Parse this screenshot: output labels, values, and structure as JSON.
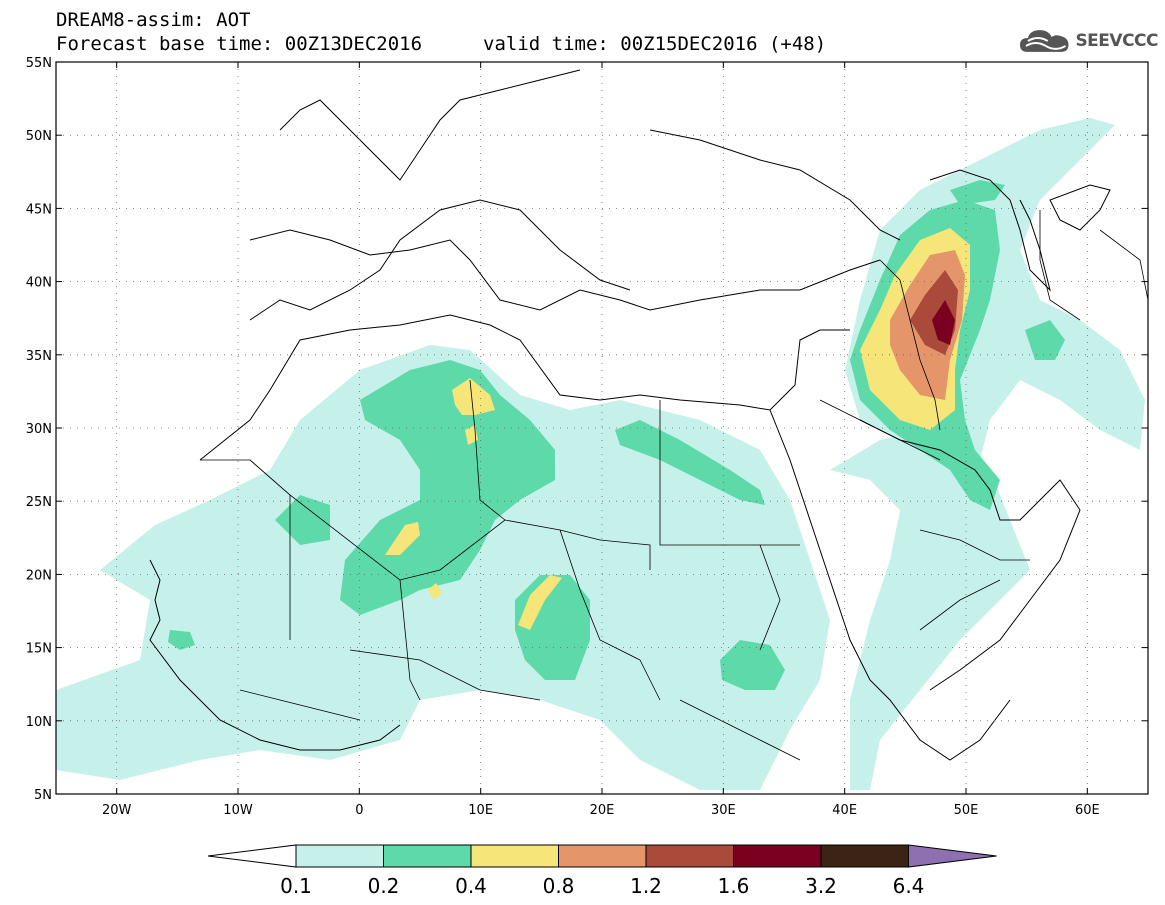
{
  "header": {
    "title_line_1": "DREAM8-assim: AOT",
    "title_line_2": "Forecast base time: 00Z13DEC2016",
    "valid_time": "valid time: 00Z15DEC2016 (+48)"
  },
  "logo": {
    "text": "SEEVCCC",
    "icon": "cloud-icon"
  },
  "map": {
    "latitude_labels": [
      "55N",
      "50N",
      "45N",
      "40N",
      "35N",
      "30N",
      "25N",
      "20N",
      "15N",
      "10N",
      "5N"
    ],
    "longitude_labels": [
      "20W",
      "10W",
      "0",
      "10E",
      "20E",
      "30E",
      "40E",
      "50E",
      "60E"
    ],
    "extent": {
      "lon": [
        -25,
        65
      ],
      "lat": [
        5,
        55
      ]
    },
    "grid": "dotted"
  },
  "colorbar": {
    "labels": [
      "0.1",
      "0.2",
      "0.4",
      "0.8",
      "1.2",
      "1.6",
      "3.2",
      "6.4"
    ],
    "colors": [
      "#ffffff",
      "#c6f1ea",
      "#5ed9aa",
      "#f6e67a",
      "#e4956a",
      "#a94a3b",
      "#7a0020",
      "#3b2415",
      "#8e6fb0"
    ]
  }
}
